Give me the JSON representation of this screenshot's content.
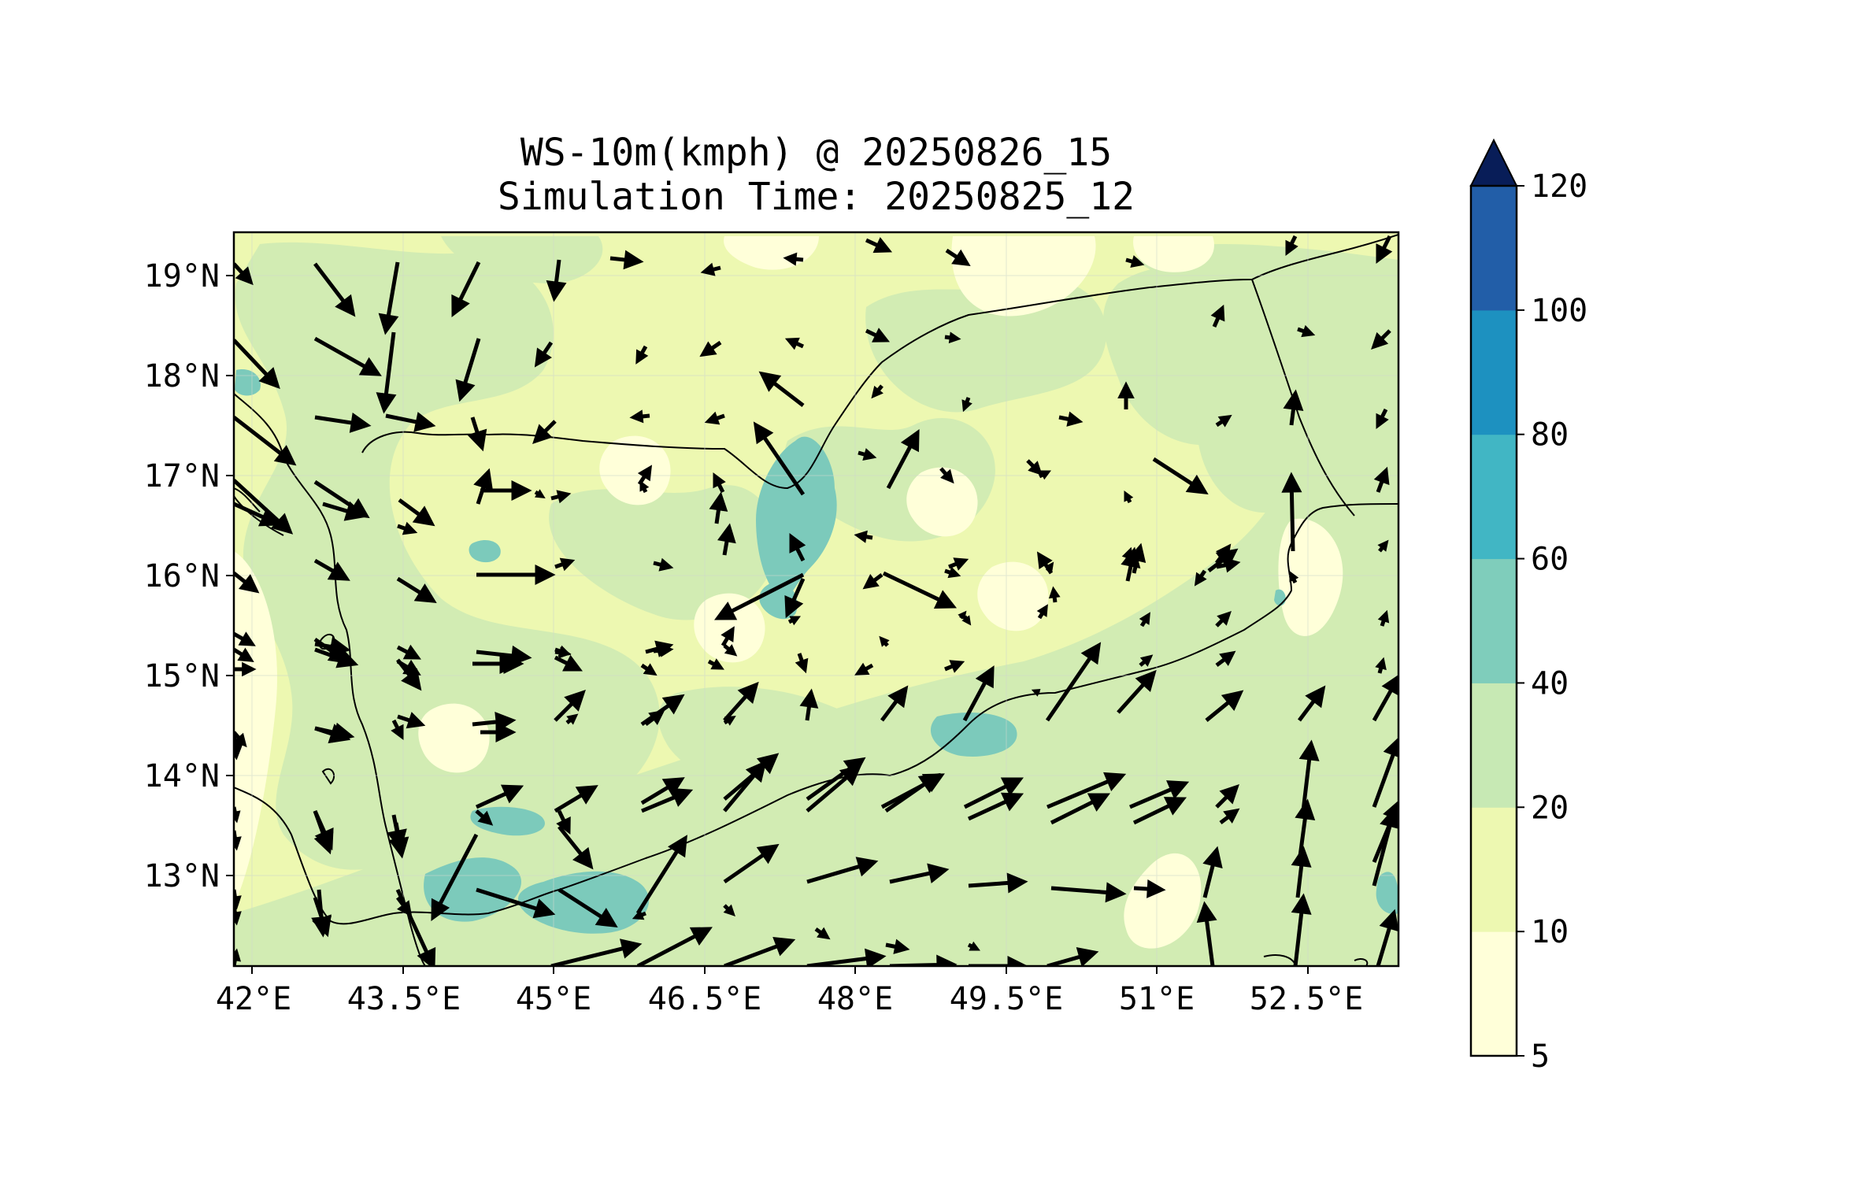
{
  "title": {
    "line1": "WS-10m(kmph) @ 20250826_15",
    "line2": "Simulation Time: 20250825_12"
  },
  "axes": {
    "x_ticks": [
      "42°E",
      "43.5°E",
      "45°E",
      "46.5°E",
      "48°E",
      "49.5°E",
      "51°E",
      "52.5°E"
    ],
    "y_ticks": [
      "19°N",
      "18°N",
      "17°N",
      "16°N",
      "15°N",
      "14°N",
      "13°N"
    ]
  },
  "colorbar": {
    "levels": [
      "5",
      "10",
      "20",
      "40",
      "60",
      "80",
      "100",
      "120"
    ],
    "colors": [
      "#ffffd9",
      "#edf8b1",
      "#c7e9b4",
      "#7fcdbb",
      "#41b6c4",
      "#1d91c0",
      "#225ea8",
      "#0c2c84"
    ],
    "extend_color": "#081d58"
  },
  "map_colors": {
    "base": "#edf8b1",
    "calm": "#ffffd9",
    "moderate": "#d2ecb3",
    "strong": "#7ccabb",
    "border": "#000000"
  }
}
